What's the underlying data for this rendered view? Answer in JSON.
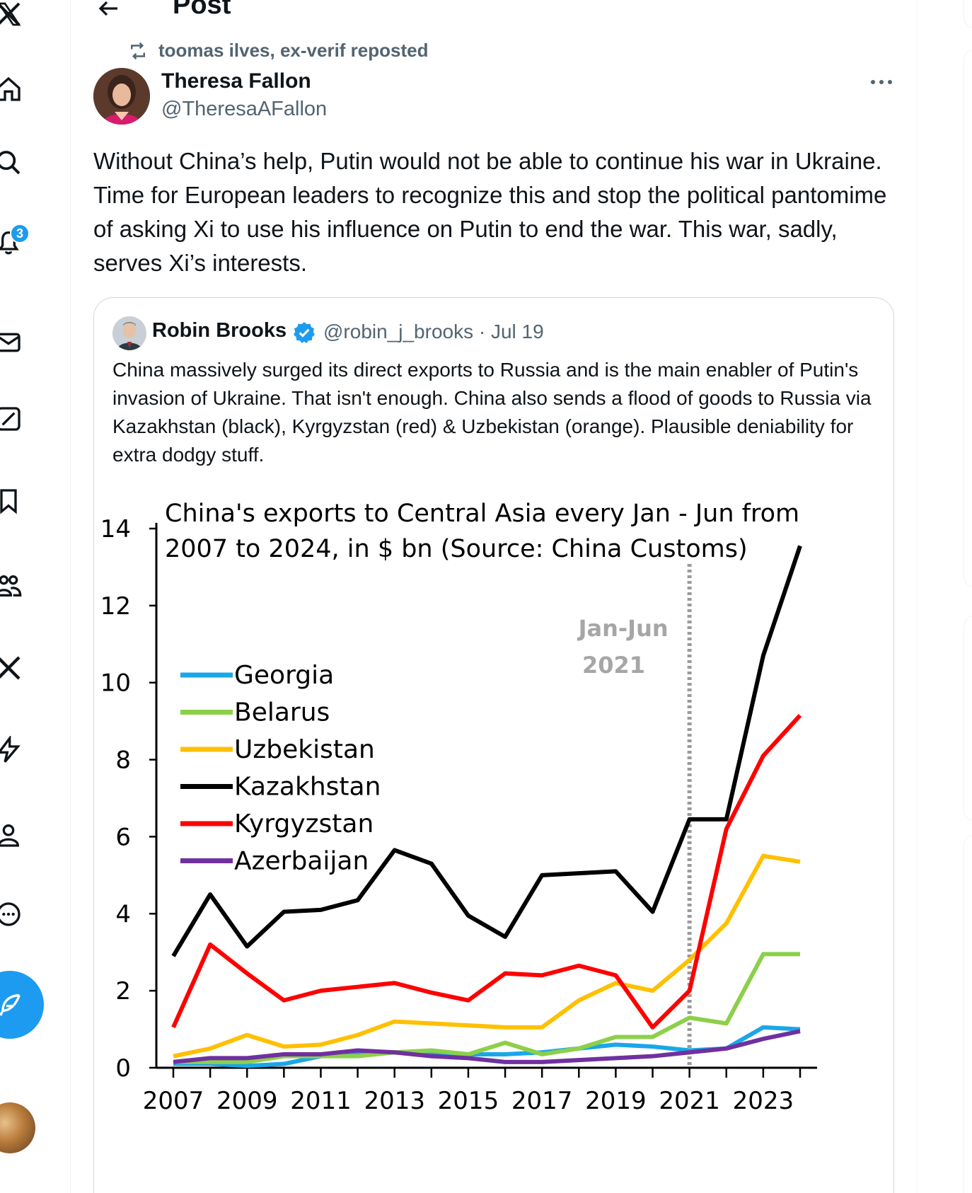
{
  "header": {
    "title": "Post"
  },
  "nav": {
    "notifications_badge": "3"
  },
  "repost": {
    "label": "toomas ilves, ex-verif reposted"
  },
  "post": {
    "author_name": "Theresa Fallon",
    "author_handle": "@TheresaAFallon",
    "text": "Without China’s help, Putin would not be able to continue his war in Ukraine. Time for European leaders to recognize this and stop the political pantomime of asking Xi to use his influence on Putin to end the war. This war, sadly, serves Xi’s interests."
  },
  "quote": {
    "author_name": "Robin Brooks",
    "handle_date": "@robin_j_brooks · Jul 19",
    "text": "China massively surged its direct exports to Russia and is the main enabler of Putin's invasion of Ukraine. That isn't enough. China also sends a flood of goods to Russia via Kazakhstan (black), Kyrgyzstan (red) & Uzbekistan (orange). Plausible deniability for extra dodgy stuff."
  },
  "colors": {
    "accent": "#1d9bf0",
    "text": "#0f1419",
    "muted": "#536471"
  },
  "chart_data": {
    "type": "line",
    "title": "China's exports to Central Asia every Jan - Jun from 2007 to 2024, in $ bn (Source: China Customs)",
    "x": [
      2007,
      2008,
      2009,
      2010,
      2011,
      2012,
      2013,
      2014,
      2015,
      2016,
      2017,
      2018,
      2019,
      2020,
      2021,
      2022,
      2023,
      2024
    ],
    "x_tick_labels": [
      "2007",
      "2009",
      "2011",
      "2013",
      "2015",
      "2017",
      "2019",
      "2021",
      "2023"
    ],
    "y_tick_labels": [
      "0",
      "2",
      "4",
      "6",
      "8",
      "10",
      "12",
      "14"
    ],
    "ylim": [
      0,
      14
    ],
    "annotation": {
      "text_line1": "Jan-Jun",
      "text_line2": "2021",
      "x": 2021
    },
    "legend_position": "left",
    "series": [
      {
        "name": "Georgia",
        "color": "#1aa7e8",
        "values": [
          0.1,
          0.1,
          0.05,
          0.1,
          0.3,
          0.35,
          0.4,
          0.35,
          0.35,
          0.35,
          0.4,
          0.5,
          0.6,
          0.55,
          0.45,
          0.5,
          1.05,
          1.0
        ]
      },
      {
        "name": "Belarus",
        "color": "#8cd04a",
        "values": [
          0.15,
          0.15,
          0.15,
          0.3,
          0.3,
          0.3,
          0.4,
          0.45,
          0.35,
          0.65,
          0.35,
          0.5,
          0.8,
          0.8,
          1.3,
          1.15,
          2.95,
          2.95
        ]
      },
      {
        "name": "Uzbekistan",
        "color": "#ffc000",
        "values": [
          0.3,
          0.5,
          0.85,
          0.55,
          0.6,
          0.85,
          1.2,
          1.15,
          1.1,
          1.05,
          1.05,
          1.75,
          2.2,
          2.0,
          2.8,
          3.75,
          5.5,
          5.35
        ]
      },
      {
        "name": "Kazakhstan",
        "color": "#000000",
        "values": [
          2.9,
          4.5,
          3.15,
          4.05,
          4.1,
          4.35,
          5.65,
          5.3,
          3.95,
          3.4,
          5.0,
          5.05,
          5.1,
          4.05,
          6.45,
          6.45,
          10.7,
          13.55
        ]
      },
      {
        "name": "Kyrgyzstan",
        "color": "#ff0000",
        "values": [
          1.05,
          3.2,
          2.45,
          1.75,
          2.0,
          2.1,
          2.2,
          1.95,
          1.75,
          2.45,
          2.4,
          2.65,
          2.4,
          1.05,
          2.0,
          6.2,
          8.1,
          9.15
        ]
      },
      {
        "name": "Azerbaijan",
        "color": "#7030a0",
        "values": [
          0.15,
          0.25,
          0.25,
          0.35,
          0.35,
          0.45,
          0.4,
          0.3,
          0.25,
          0.15,
          0.15,
          0.2,
          0.25,
          0.3,
          0.4,
          0.5,
          0.75,
          0.95
        ]
      }
    ]
  }
}
